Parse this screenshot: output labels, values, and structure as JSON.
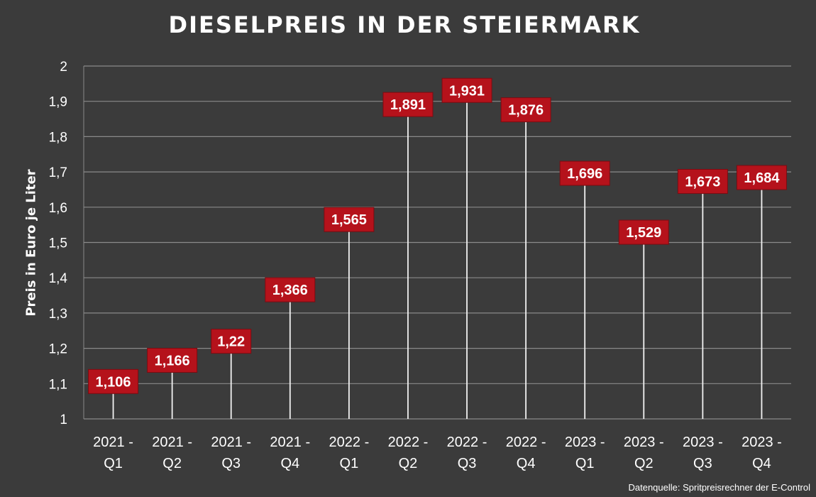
{
  "chart_data": {
    "type": "bar",
    "title": "DIESELPREIS IN DER STEIERMARK",
    "ylabel": "Preis in Euro je Liter",
    "xlabel": "",
    "categories": [
      [
        "2021 -",
        "Q1"
      ],
      [
        "2021 -",
        "Q2"
      ],
      [
        "2021 -",
        "Q3"
      ],
      [
        "2021 -",
        "Q4"
      ],
      [
        "2022 -",
        "Q1"
      ],
      [
        "2022 -",
        "Q2"
      ],
      [
        "2022 -",
        "Q3"
      ],
      [
        "2022 -",
        "Q4"
      ],
      [
        "2023 -",
        "Q1"
      ],
      [
        "2023 -",
        "Q2"
      ],
      [
        "2023 -",
        "Q3"
      ],
      [
        "2023 -",
        "Q4"
      ]
    ],
    "values": [
      1.106,
      1.166,
      1.22,
      1.366,
      1.565,
      1.891,
      1.931,
      1.876,
      1.696,
      1.529,
      1.673,
      1.684
    ],
    "data_labels": [
      "1,106",
      "1,166",
      "1,22",
      "1,366",
      "1,565",
      "1,891",
      "1,931",
      "1,876",
      "1,696",
      "1,529",
      "1,673",
      "1,684"
    ],
    "ylim": [
      1,
      2
    ],
    "yticks": [
      1,
      1.1,
      1.2,
      1.3,
      1.4,
      1.5,
      1.6,
      1.7,
      1.8,
      1.9,
      2
    ],
    "ytick_labels": [
      "1",
      "1,1",
      "1,2",
      "1,3",
      "1,4",
      "1,5",
      "1,6",
      "1,7",
      "1,8",
      "1,9",
      "2"
    ],
    "grid": true,
    "label_color": "#b5121b",
    "footnote": "Datenquelle: Spritpreisrechner der E-Control"
  }
}
